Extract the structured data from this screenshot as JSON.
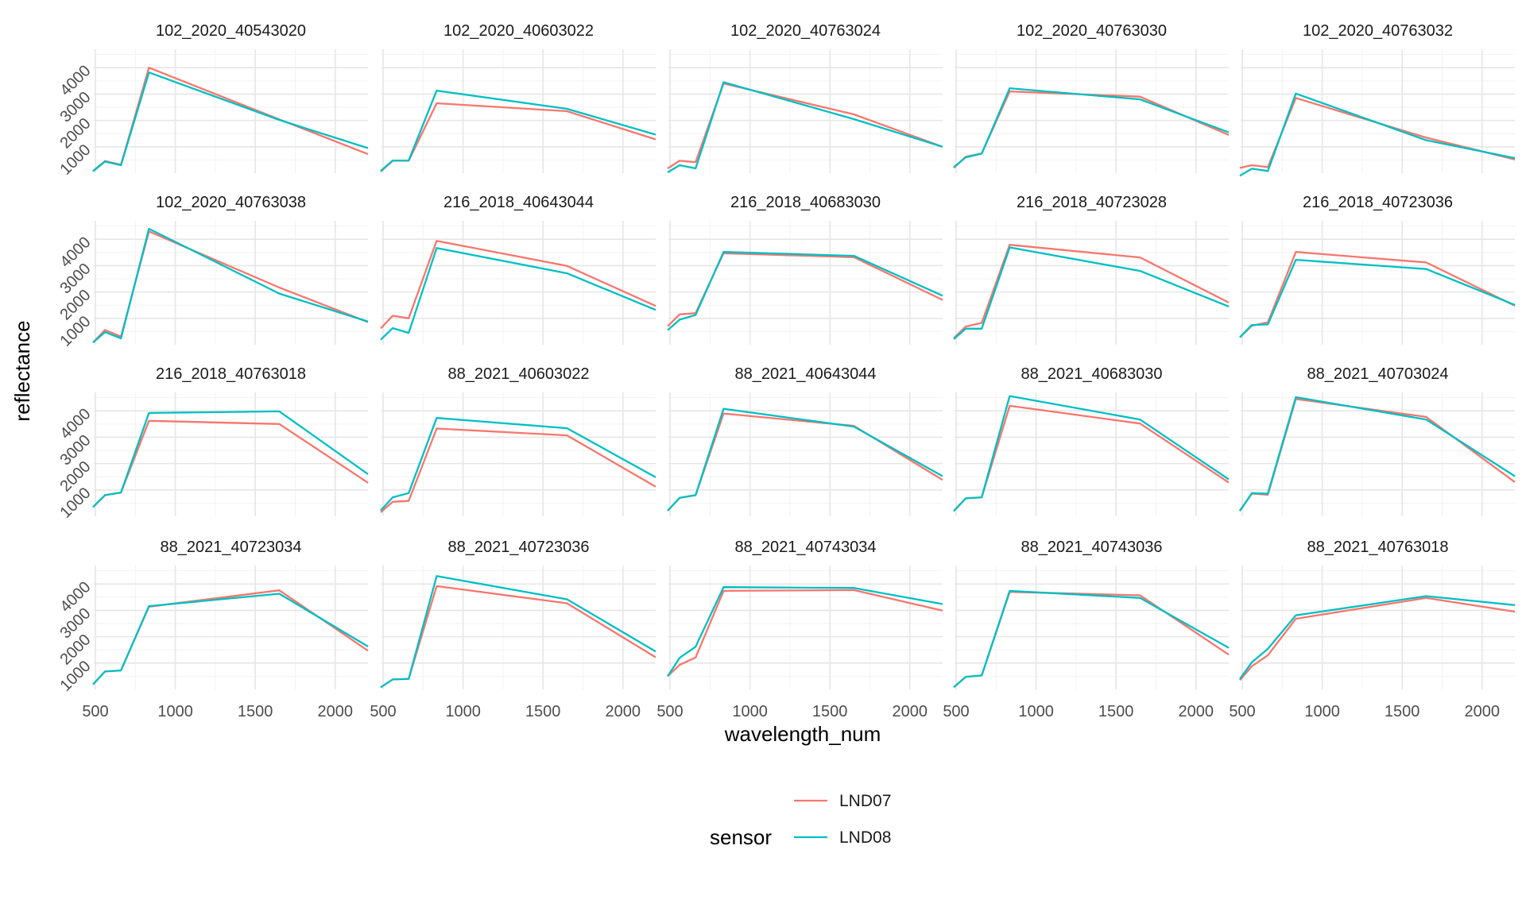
{
  "chart_data": {
    "type": "line",
    "layout": "facet-grid-4x5",
    "xlabel": "wavelength_num",
    "ylabel": "reflectance",
    "x": [
      485,
      560,
      660,
      835,
      1650,
      2205
    ],
    "xlim": [
      490,
      2205
    ],
    "ylim": [
      0,
      4700
    ],
    "xticks": [
      500,
      1000,
      1500,
      2000
    ],
    "yticks": [
      1000,
      2000,
      3000,
      4000
    ],
    "grid": true,
    "colors": {
      "LND07": "#F8766D",
      "LND08": "#00BFC4"
    },
    "legend": {
      "title": "sensor",
      "position": "bottom",
      "entries": [
        "LND07",
        "LND08"
      ]
    },
    "facets": [
      {
        "title": "102_2020_40543020",
        "series": [
          {
            "name": "LND07",
            "values": [
              80,
              460,
              320,
              4000,
              2040,
              720
            ]
          },
          {
            "name": "LND08",
            "values": [
              70,
              440,
              300,
              3820,
              2020,
              950
            ]
          }
        ]
      },
      {
        "title": "102_2020_40603022",
        "series": [
          {
            "name": "LND07",
            "values": [
              60,
              470,
              470,
              2650,
              2350,
              1280
            ]
          },
          {
            "name": "LND08",
            "values": [
              80,
              480,
              480,
              3130,
              2440,
              1460
            ]
          }
        ]
      },
      {
        "title": "102_2020_40763024",
        "series": [
          {
            "name": "LND07",
            "values": [
              180,
              470,
              420,
              3400,
              2230,
              1000
            ]
          },
          {
            "name": "LND08",
            "values": [
              30,
              300,
              180,
              3450,
              2050,
              1000
            ]
          }
        ]
      },
      {
        "title": "102_2020_40763030",
        "series": [
          {
            "name": "LND07",
            "values": [
              200,
              620,
              750,
              3100,
              2900,
              1450
            ]
          },
          {
            "name": "LND08",
            "values": [
              230,
              600,
              740,
              3220,
              2800,
              1550
            ]
          }
        ]
      },
      {
        "title": "102_2020_40763032",
        "series": [
          {
            "name": "LND07",
            "values": [
              200,
              300,
              230,
              2850,
              1350,
              520
            ]
          },
          {
            "name": "LND08",
            "values": [
              -100,
              170,
              80,
              3020,
              1250,
              570
            ]
          }
        ]
      },
      {
        "title": "102_2020_40763038",
        "series": [
          {
            "name": "LND07",
            "values": [
              80,
              560,
              310,
              4300,
              2170,
              860
            ]
          },
          {
            "name": "LND08",
            "values": [
              80,
              480,
              240,
              4400,
              1940,
              880
            ]
          }
        ]
      },
      {
        "title": "216_2018_40643044",
        "series": [
          {
            "name": "LND07",
            "values": [
              620,
              1100,
              1000,
              3940,
              2990,
              1470
            ]
          },
          {
            "name": "LND08",
            "values": [
              190,
              630,
              450,
              3670,
              2710,
              1320
            ]
          }
        ]
      },
      {
        "title": "216_2018_40683030",
        "series": [
          {
            "name": "LND07",
            "values": [
              700,
              1150,
              1200,
              3470,
              3320,
              1700
            ]
          },
          {
            "name": "LND08",
            "values": [
              550,
              950,
              1130,
              3520,
              3370,
              1860
            ]
          }
        ]
      },
      {
        "title": "216_2018_40723028",
        "series": [
          {
            "name": "LND07",
            "values": [
              250,
              690,
              830,
              3790,
              3310,
              1600
            ]
          },
          {
            "name": "LND08",
            "values": [
              210,
              610,
              610,
              3690,
              2800,
              1450
            ]
          }
        ]
      },
      {
        "title": "216_2018_40723036",
        "series": [
          {
            "name": "LND07",
            "values": [
              280,
              720,
              850,
              3520,
              3120,
              1480
            ]
          },
          {
            "name": "LND08",
            "values": [
              280,
              750,
              770,
              3220,
              2870,
              1510
            ]
          }
        ]
      },
      {
        "title": "216_2018_40763018",
        "series": [
          {
            "name": "LND07",
            "values": [
              350,
              800,
              900,
              3620,
              3500,
              1270
            ]
          },
          {
            "name": "LND08",
            "values": [
              350,
              800,
              900,
              3920,
              3980,
              1600
            ]
          }
        ]
      },
      {
        "title": "88_2021_40603022",
        "series": [
          {
            "name": "LND07",
            "values": [
              150,
              550,
              580,
              3330,
              3070,
              1120
            ]
          },
          {
            "name": "LND08",
            "values": [
              220,
              720,
              880,
              3730,
              3340,
              1480
            ]
          }
        ]
      },
      {
        "title": "88_2021_40643044",
        "series": [
          {
            "name": "LND07",
            "values": [
              210,
              700,
              800,
              3900,
              3430,
              1380
            ]
          },
          {
            "name": "LND08",
            "values": [
              210,
              700,
              800,
              4080,
              3400,
              1520
            ]
          }
        ]
      },
      {
        "title": "88_2021_40683030",
        "series": [
          {
            "name": "LND07",
            "values": [
              200,
              680,
              720,
              4190,
              3520,
              1280
            ]
          },
          {
            "name": "LND08",
            "values": [
              200,
              680,
              720,
              4560,
              3670,
              1400
            ]
          }
        ]
      },
      {
        "title": "88_2021_40703024",
        "series": [
          {
            "name": "LND07",
            "values": [
              220,
              860,
              820,
              4450,
              3770,
              1300
            ]
          },
          {
            "name": "LND08",
            "values": [
              200,
              880,
              860,
              4520,
              3670,
              1520
            ]
          }
        ]
      },
      {
        "title": "88_2021_40723034",
        "series": [
          {
            "name": "LND07",
            "values": [
              190,
              680,
              720,
              3140,
              3760,
              1470
            ]
          },
          {
            "name": "LND08",
            "values": [
              190,
              680,
              720,
              3160,
              3630,
              1630
            ]
          }
        ]
      },
      {
        "title": "88_2021_40723036",
        "series": [
          {
            "name": "LND07",
            "values": [
              80,
              380,
              400,
              3920,
              3270,
              1220
            ]
          },
          {
            "name": "LND08",
            "values": [
              80,
              380,
              400,
              4300,
              3420,
              1440
            ]
          }
        ]
      },
      {
        "title": "88_2021_40743034",
        "series": [
          {
            "name": "LND07",
            "values": [
              500,
              930,
              1210,
              3740,
              3770,
              2990
            ]
          },
          {
            "name": "LND08",
            "values": [
              500,
              1200,
              1620,
              3880,
              3850,
              3240
            ]
          }
        ]
      },
      {
        "title": "88_2021_40743036",
        "series": [
          {
            "name": "LND07",
            "values": [
              80,
              480,
              530,
              3700,
              3570,
              1320
            ]
          },
          {
            "name": "LND08",
            "values": [
              80,
              480,
              530,
              3740,
              3470,
              1580
            ]
          }
        ]
      },
      {
        "title": "88_2021_40763018",
        "series": [
          {
            "name": "LND07",
            "values": [
              350,
              880,
              1300,
              2680,
              3470,
              2950
            ]
          },
          {
            "name": "LND08",
            "values": [
              400,
              1030,
              1540,
              2810,
              3540,
              3200
            ]
          }
        ]
      }
    ]
  }
}
